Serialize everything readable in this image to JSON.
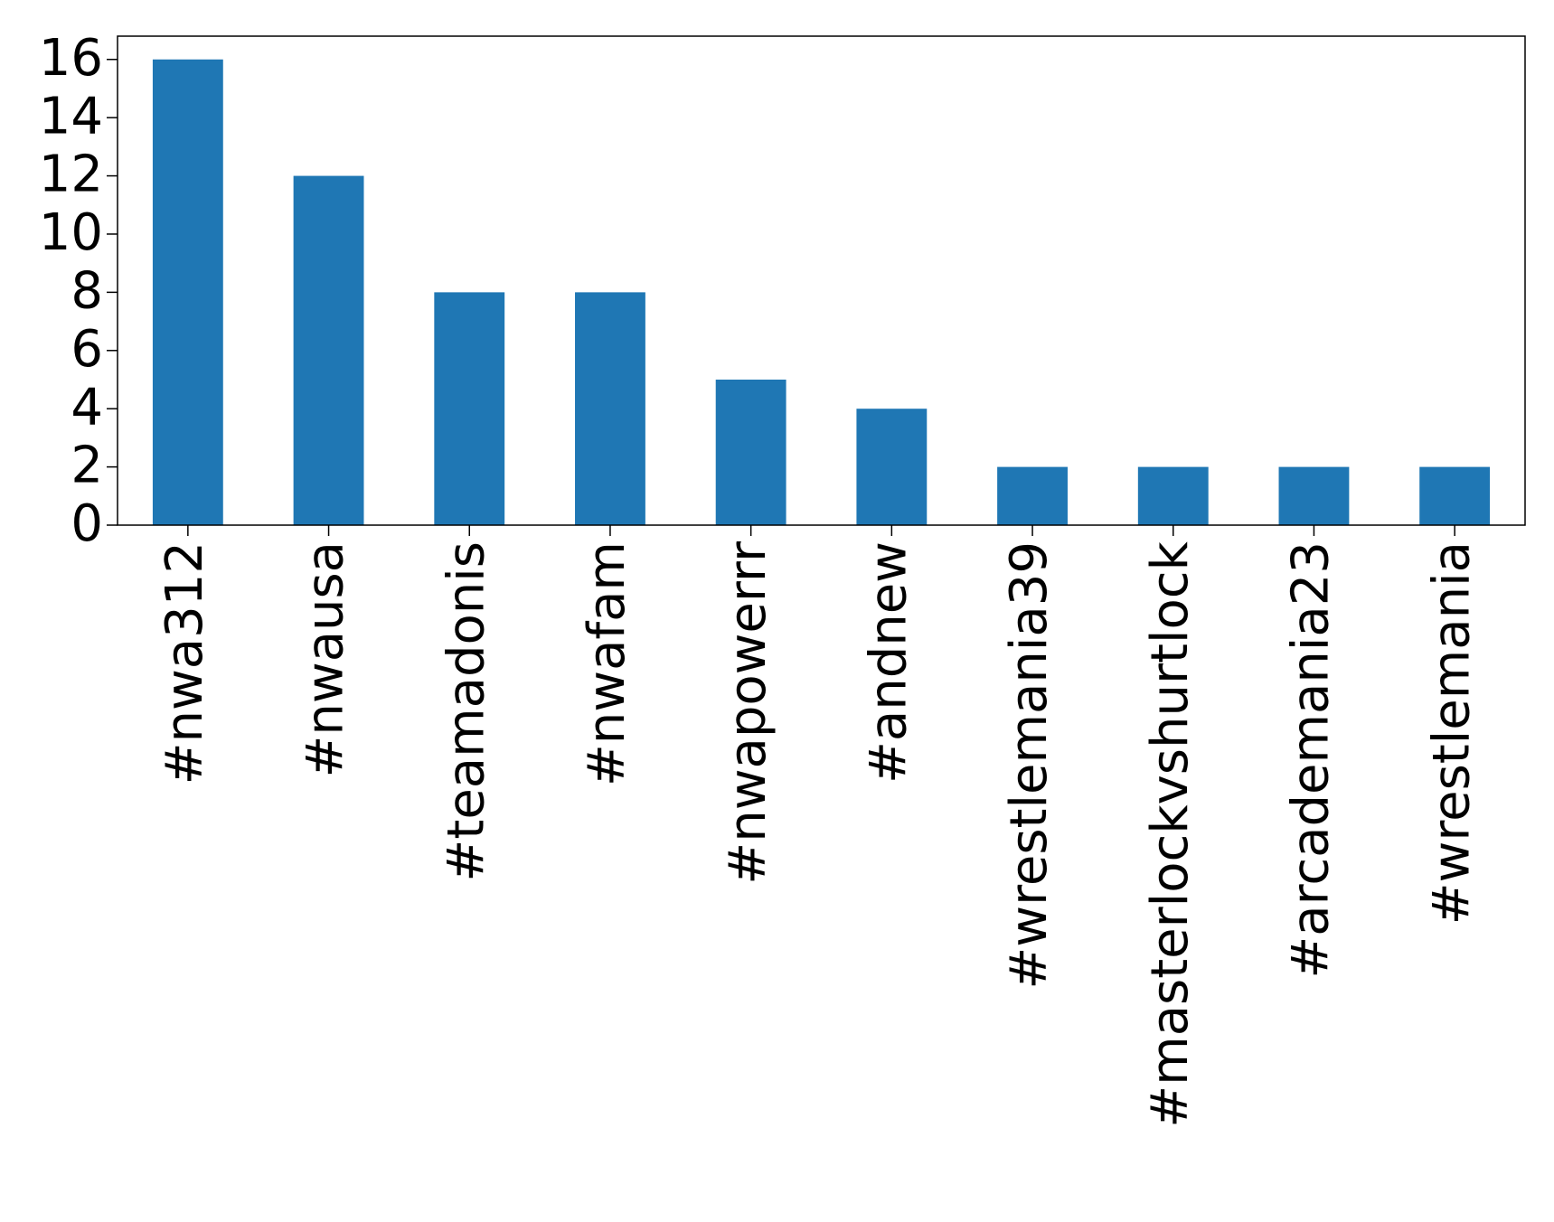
{
  "chart_data": {
    "type": "bar",
    "categories": [
      "#nwa312",
      "#nwausa",
      "#teamadonis",
      "#nwafam",
      "#nwapowerrr",
      "#andnew",
      "#wrestlemania39",
      "#masterlockvshurtlock",
      "#arcademania23",
      "#wrestlemania"
    ],
    "values": [
      16,
      12,
      8,
      8,
      5,
      4,
      2,
      2,
      2,
      2
    ],
    "color": "#1f77b4",
    "ylim": [
      0,
      16.8
    ],
    "yticks": [
      0,
      2,
      4,
      6,
      8,
      10,
      12,
      14,
      16
    ],
    "grid": false
  }
}
